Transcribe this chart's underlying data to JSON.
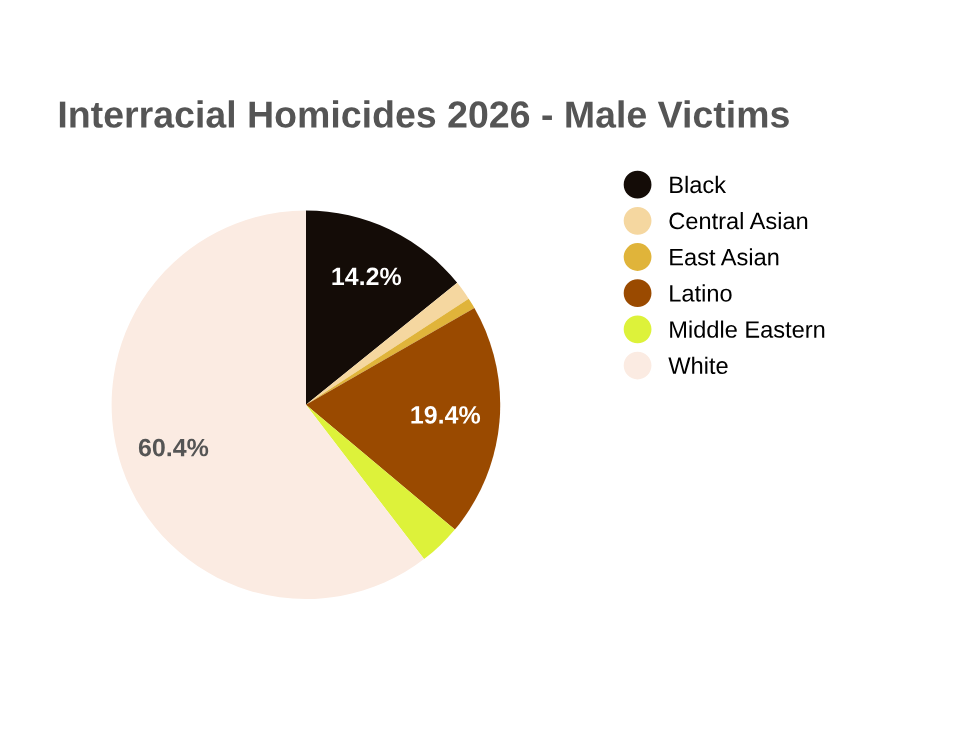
{
  "chart_data": {
    "type": "pie",
    "title": "Interracial Homicides 2026 - Male Victims",
    "categories": [
      "Black",
      "Central Asian",
      "East Asian",
      "Latino",
      "Middle Eastern",
      "White"
    ],
    "values": [
      14.2,
      1.6,
      0.9,
      19.4,
      3.5,
      60.4
    ],
    "value_labels": [
      "14.2%",
      null,
      null,
      "19.4%",
      null,
      "60.4%"
    ],
    "colors": [
      "#140c07",
      "#f5d7a0",
      "#e0b43a",
      "#9a4a00",
      "#ddf23a",
      "#fbebe2"
    ],
    "legend": "right"
  }
}
